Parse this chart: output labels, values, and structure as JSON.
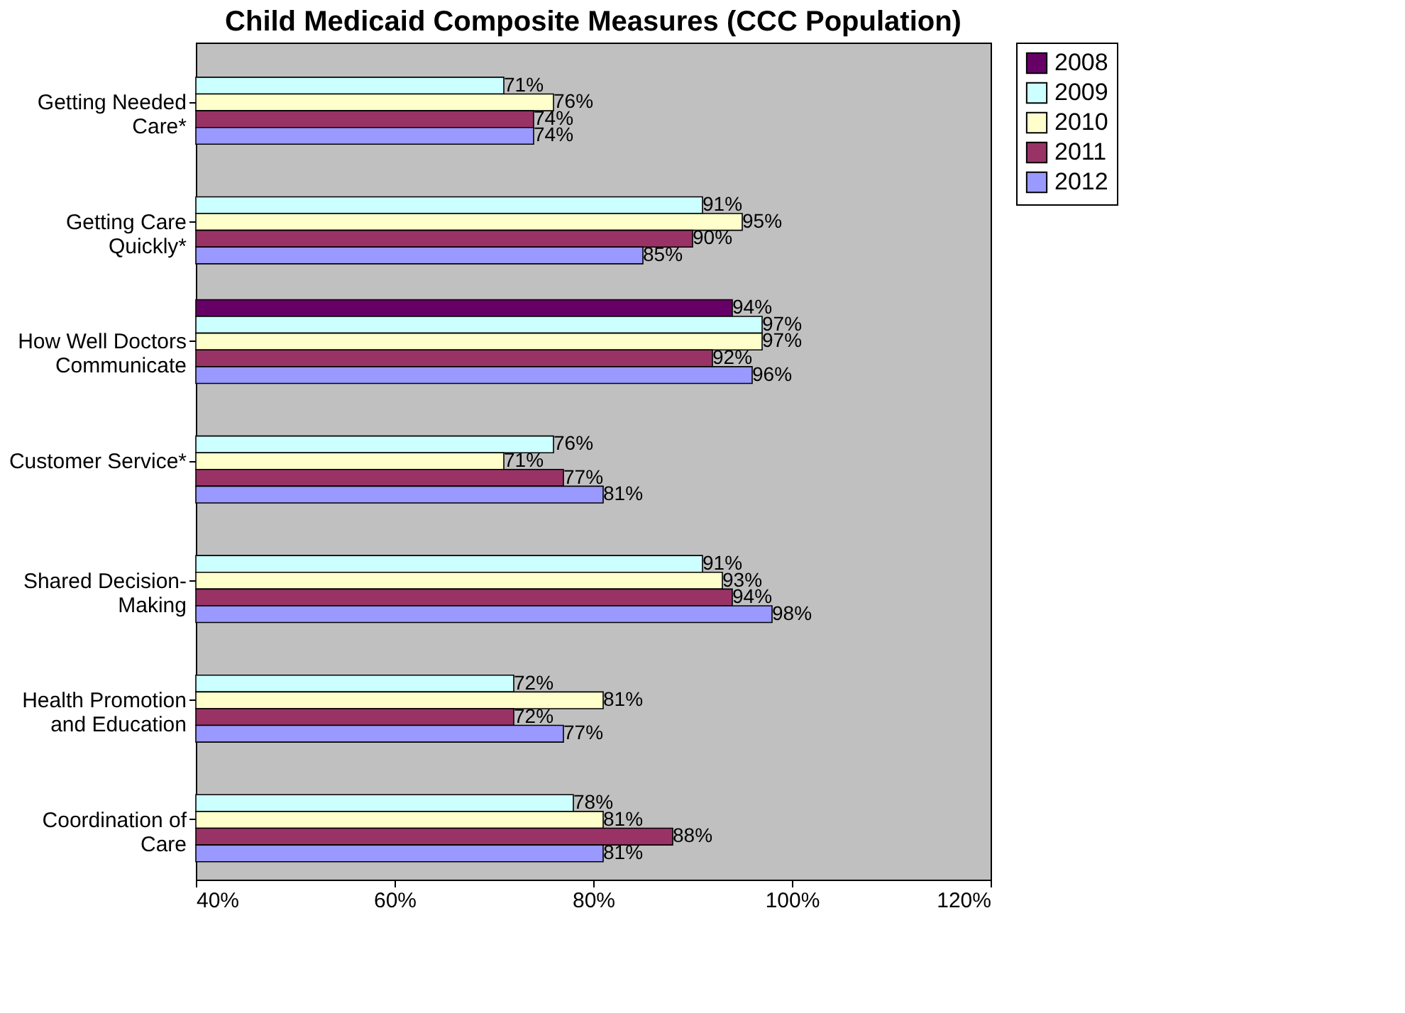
{
  "chart_data": {
    "type": "bar",
    "orientation": "horizontal",
    "title": "Child Medicaid Composite Measures (CCC Population)",
    "categories": [
      "Getting Needed Care*",
      "Getting Care Quickly*",
      "How Well Doctors Communicate",
      "Customer Service*",
      "Shared Decision-Making",
      "Health Promotion and Education",
      "Coordination of Care"
    ],
    "series": [
      {
        "name": "2008",
        "color": "#660066",
        "values": [
          null,
          null,
          94,
          null,
          null,
          null,
          null
        ],
        "value_labels": [
          null,
          null,
          "94%",
          null,
          null,
          null,
          null
        ]
      },
      {
        "name": "2009",
        "color": "#ccffff",
        "values": [
          71,
          91,
          97,
          76,
          91,
          72,
          78
        ],
        "value_labels": [
          "71%",
          "91%",
          "97%",
          "76%",
          "91%",
          "72%",
          "78%"
        ]
      },
      {
        "name": "2010",
        "color": "#ffffcc",
        "values": [
          76,
          95,
          97,
          71,
          93,
          81,
          81
        ],
        "value_labels": [
          "76%",
          "95%",
          "97%",
          "71%",
          "93%",
          "81%",
          "81%"
        ]
      },
      {
        "name": "2011",
        "color": "#993366",
        "values": [
          74,
          90,
          92,
          77,
          94,
          72,
          88
        ],
        "value_labels": [
          "74%",
          "90%",
          "92%",
          "77%",
          "94%",
          "72%",
          "88%"
        ]
      },
      {
        "name": "2012",
        "color": "#9999ff",
        "values": [
          74,
          85,
          96,
          81,
          98,
          77,
          81
        ],
        "value_labels": [
          "74%",
          "85%",
          "96%",
          "81%",
          "98%",
          "77%",
          "81%"
        ]
      }
    ],
    "xlim": [
      40,
      120
    ],
    "xticks": [
      {
        "value": 40,
        "label": "40%"
      },
      {
        "value": 60,
        "label": "60%"
      },
      {
        "value": 80,
        "label": "80%"
      },
      {
        "value": 100,
        "label": "100%"
      },
      {
        "value": 120,
        "label": "120%"
      }
    ],
    "grid": false,
    "legend": "right"
  }
}
